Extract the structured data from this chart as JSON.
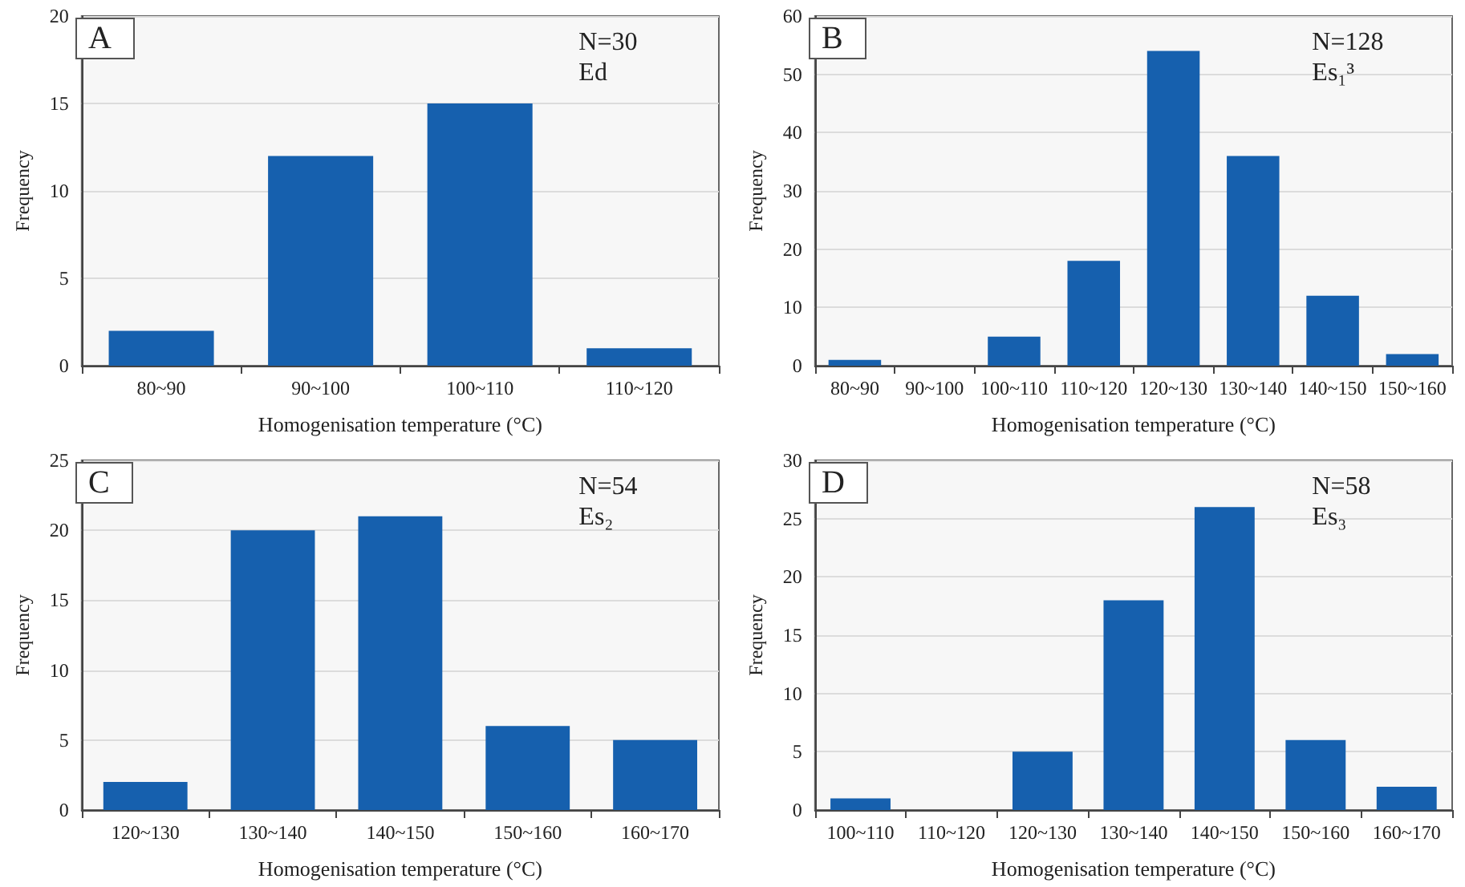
{
  "chart_data": [
    {
      "type": "bar",
      "title": "A",
      "xlabel": "Homogenisation temperature (°C)",
      "ylabel": "Frequency",
      "annotations": [
        "N=30",
        "Ed"
      ],
      "categories": [
        "80~90",
        "90~100",
        "100~110",
        "110~120"
      ],
      "color": "#1660ae",
      "values": [
        2,
        12,
        15,
        1
      ],
      "ylim": [
        0,
        20
      ],
      "yticks": [
        0,
        5,
        10,
        15,
        20
      ],
      "grid": "y"
    },
    {
      "type": "bar",
      "title": "B",
      "xlabel": "Homogenisation temperature (°C)",
      "ylabel": "Frequency",
      "annotations": [
        "N=128",
        "Es₁³"
      ],
      "categories": [
        "80~90",
        "90~100",
        "100~110",
        "110~120",
        "120~130",
        "130~140",
        "140~150",
        "150~160"
      ],
      "color": "#1660ae",
      "values": [
        1,
        0,
        5,
        18,
        54,
        36,
        12,
        2
      ],
      "ylim": [
        0,
        60
      ],
      "yticks": [
        0,
        10,
        20,
        30,
        40,
        50,
        60
      ],
      "grid": "y"
    },
    {
      "type": "bar",
      "title": "C",
      "xlabel": "Homogenisation temperature (°C)",
      "ylabel": "Frequency",
      "annotations": [
        "N=54",
        "Es₂"
      ],
      "categories": [
        "120~130",
        "130~140",
        "140~150",
        "150~160",
        "160~170"
      ],
      "color": "#1660ae",
      "values": [
        2,
        20,
        21,
        6,
        5
      ],
      "ylim": [
        0,
        25
      ],
      "yticks": [
        0,
        5,
        10,
        15,
        20,
        25
      ],
      "grid": "y"
    },
    {
      "type": "bar",
      "title": "D",
      "xlabel": "Homogenisation temperature (°C)",
      "ylabel": "Frequency",
      "annotations": [
        "N=58",
        "Es₃"
      ],
      "categories": [
        "100~110",
        "110~120",
        "120~130",
        "130~140",
        "140~150",
        "150~160",
        "160~170"
      ],
      "color": "#1660ae",
      "values": [
        1,
        0,
        5,
        18,
        26,
        6,
        2
      ],
      "ylim": [
        0,
        30
      ],
      "yticks": [
        0,
        5,
        10,
        15,
        20,
        25,
        30
      ],
      "grid": "y"
    }
  ]
}
